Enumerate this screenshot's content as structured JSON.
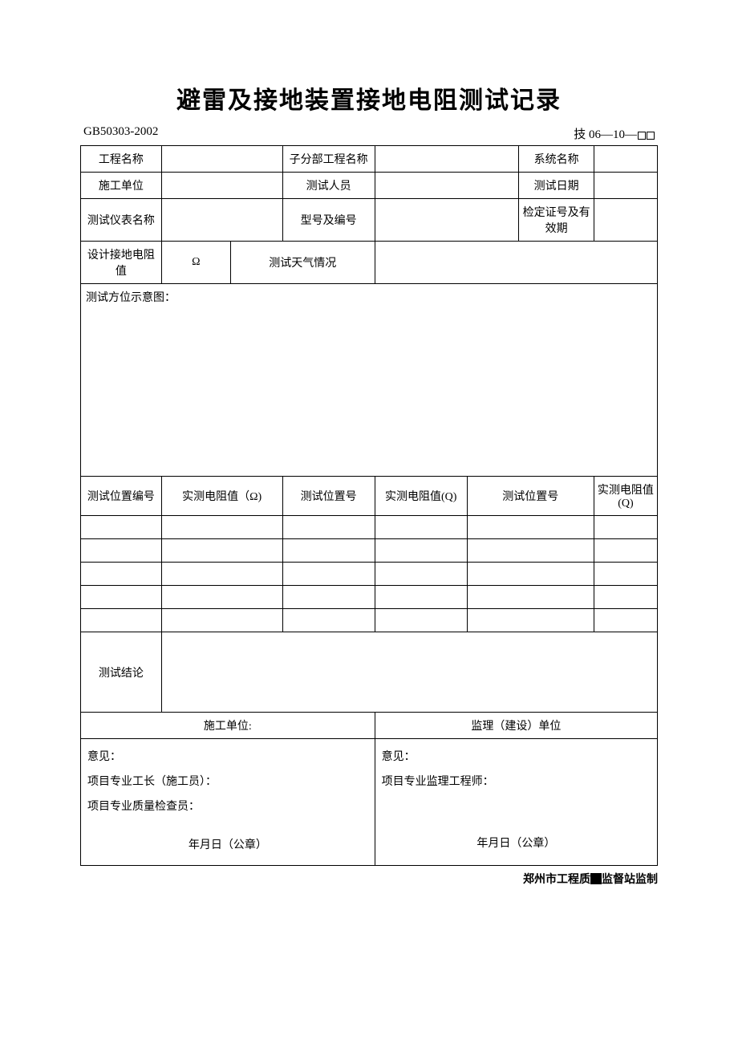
{
  "title": "避雷及接地装置接地电阻测试记录",
  "standard": "GB50303-2002",
  "form_code_prefix": "技 06—10—",
  "header_rows": [
    {
      "c1": "工程名称",
      "v1": "",
      "c2": "子分部工程名称",
      "v2": "",
      "c3": "系统名称",
      "v3": ""
    },
    {
      "c1": "施工单位",
      "v1": "",
      "c2": "测试人员",
      "v2": "",
      "c3": "测试日期",
      "v3": ""
    },
    {
      "c1": "测试仪表名称",
      "v1": "",
      "c2": "型号及编号",
      "v2": "",
      "c3": "检定证号及有效期",
      "v3": ""
    }
  ],
  "design_row": {
    "label": "设计接地电阻值",
    "value": "Ω",
    "weather_label": "测试天气情况",
    "weather_value": ""
  },
  "diagram_label": "测试方位示意图：",
  "measure_headers": {
    "pos": "测试位置编号",
    "val1": "实测电阻值（Ω)",
    "pos2": "测试位置号",
    "val2": "实测电阻值(Q)",
    "pos3": "测试位置号",
    "val3": "实测电阻值(Q)"
  },
  "measure_rows": 5,
  "conclusion_label": "测试结论",
  "conclusion_value": "",
  "sig": {
    "left_header": "施工单位:",
    "right_header": "监理（建设）单位",
    "left_lines": {
      "opinion": "意见：",
      "foreman": "项目专业工长（施工员）：",
      "inspector": "项目专业质量检查员：",
      "stamp": "年月日（公章）"
    },
    "right_lines": {
      "opinion": "意见：",
      "engineer": "项目专业监理工程师：",
      "stamp": "年月日（公章）"
    }
  },
  "footer_prefix": "郑州市工程质",
  "footer_suffix": "监督站监制",
  "colors": {
    "text": "#000000",
    "bg": "#ffffff",
    "border": "#000000"
  }
}
